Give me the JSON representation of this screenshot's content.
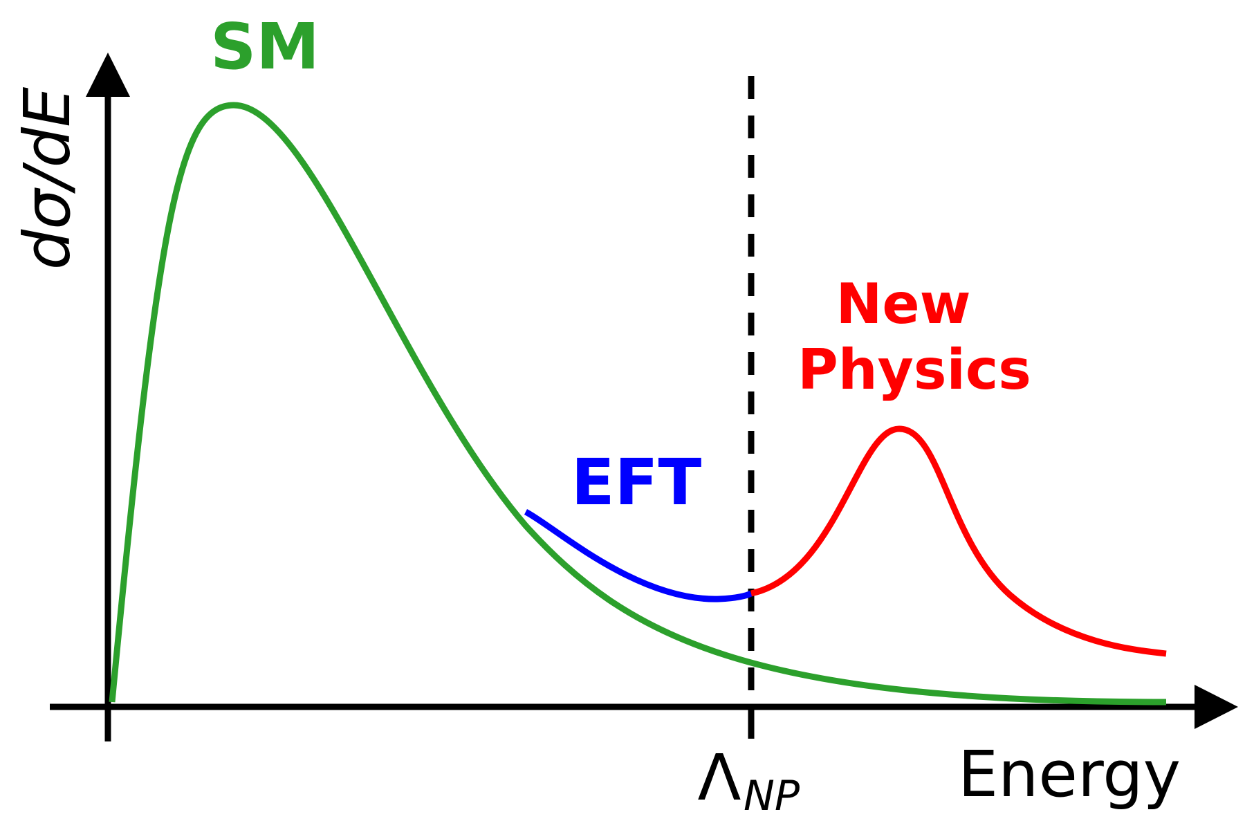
{
  "labels": {
    "sm": "SM",
    "eft": "EFT",
    "new_physics_line1": "New",
    "new_physics_line2": "Physics",
    "y_axis": "dσ/dE",
    "x_axis": "Energy",
    "threshold_symbol": "Λ",
    "threshold_subscript": "NP"
  },
  "colors": {
    "sm": "#2ca02c",
    "eft": "#0000ff",
    "new_physics": "#ff0000",
    "axes": "#000000"
  },
  "curves": {
    "sm": "standard-model spectrum: sharp rise from origin, peak, long decaying tail",
    "eft": "effective field theory deviation branching above SM tail up to threshold",
    "new_physics": "resonance peak beyond the threshold followed by elevated tail"
  }
}
